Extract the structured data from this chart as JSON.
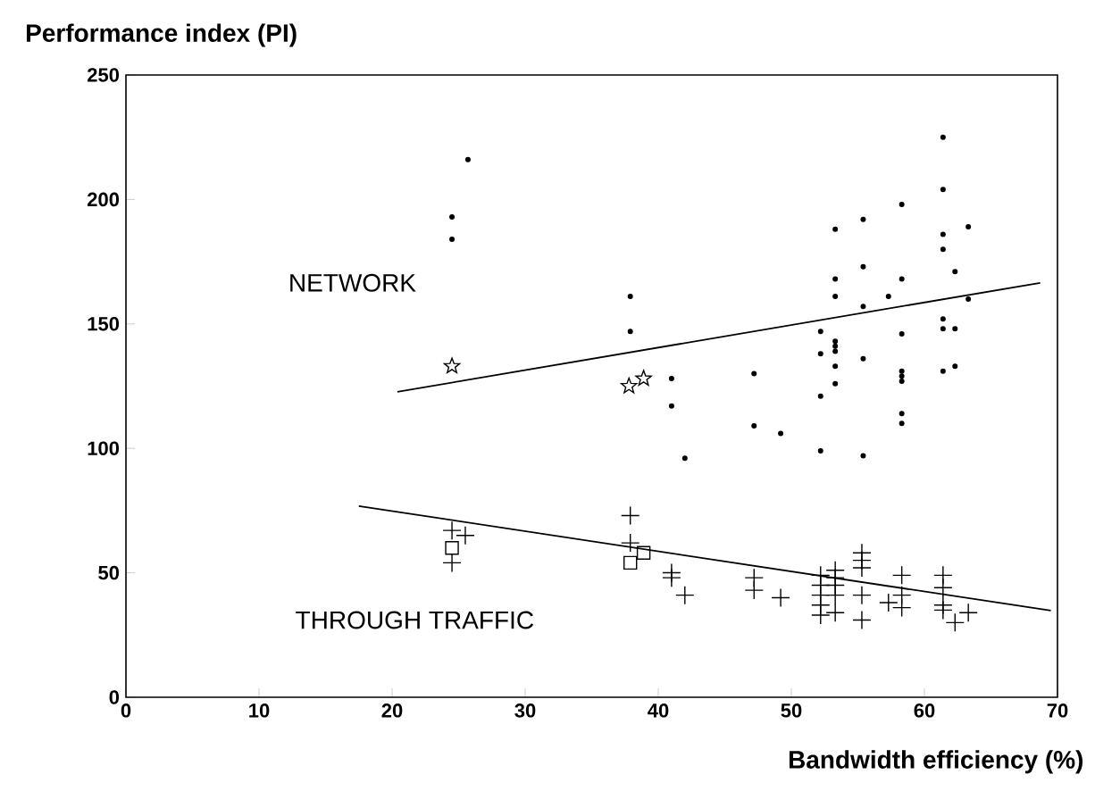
{
  "chart_data": {
    "type": "scatter",
    "xlabel": "Bandwidth efficiency (%)",
    "ylabel": "Performance index (PI)",
    "xlim": [
      0,
      70
    ],
    "ylim": [
      0,
      250
    ],
    "xticks": [
      0,
      10,
      20,
      30,
      40,
      50,
      60,
      70
    ],
    "yticks": [
      0,
      50,
      100,
      150,
      200,
      250
    ],
    "annotations": [
      "NETWORK",
      "THROUGH TRAFFIC"
    ],
    "series": [
      {
        "color": "#000000",
        "marker": "circle",
        "x": [
          25.7,
          24.5,
          24.5,
          37.9,
          37.9,
          41,
          41,
          61.4,
          61.4,
          58.3,
          55.4,
          53.3,
          63.3,
          61.4,
          61.4,
          55.4,
          62.3,
          53.3,
          58.3,
          53.3,
          57.3,
          63.3,
          55.4,
          61.4,
          61.4,
          62.3,
          52.2,
          58.3,
          53.3,
          53.3,
          53.3,
          52.2,
          55.4,
          53.3,
          62.3,
          61.4,
          58.3,
          58.3,
          58.3,
          53.3,
          47.2,
          52.2,
          58.3,
          58.3,
          47.2,
          49.2,
          52.2,
          55.4,
          42
        ],
        "values": [
          216,
          193,
          184,
          161,
          147,
          128,
          117,
          225,
          204,
          198,
          192,
          188,
          189,
          186,
          180,
          173,
          171,
          168,
          168,
          161,
          161,
          160,
          157,
          152,
          148,
          148,
          147,
          146,
          143,
          141,
          139,
          138,
          136,
          133,
          133,
          131,
          131,
          129,
          127,
          126,
          130,
          121,
          114,
          110,
          109,
          106,
          99,
          97,
          96
        ]
      },
      {
        "color": "#000000",
        "marker": "star",
        "x": [
          24.5,
          37.8,
          38.9
        ],
        "values": [
          133,
          125,
          128
        ]
      },
      {
        "color": "#000000",
        "marker": "cross",
        "x": [
          25.5,
          24.5,
          24.5,
          37.9,
          37.9,
          41,
          41,
          42,
          47.2,
          47.2,
          49.2,
          52.2,
          52.2,
          52.2,
          52.2,
          52.2,
          53.3,
          53.3,
          53.3,
          53.3,
          53.3,
          55.3,
          55.3,
          55.3,
          55.3,
          55.3,
          57.3,
          58.3,
          58.3,
          58.3,
          61.4,
          61.4,
          61.4,
          61.4,
          62.3,
          63.3
        ],
        "values": [
          65,
          67,
          54,
          73,
          62,
          50,
          48,
          41,
          48,
          43,
          40,
          49,
          45,
          41,
          37,
          33,
          51,
          48,
          45,
          41,
          34,
          58,
          55,
          52,
          41,
          31,
          38,
          49,
          41,
          36,
          49,
          44,
          37,
          35,
          30,
          34
        ]
      },
      {
        "color": "#000000",
        "marker": "square",
        "x": [
          24.5,
          37.9,
          38.9
        ],
        "values": [
          60,
          54,
          58
        ]
      },
      {
        "type": "line",
        "color": "#000000",
        "x": [
          20.4,
          68.7
        ],
        "values": [
          122.7,
          166.5
        ]
      },
      {
        "type": "line",
        "color": "#000000",
        "x": [
          17.5,
          69.5
        ],
        "values": [
          76.8,
          34.8
        ]
      }
    ]
  }
}
